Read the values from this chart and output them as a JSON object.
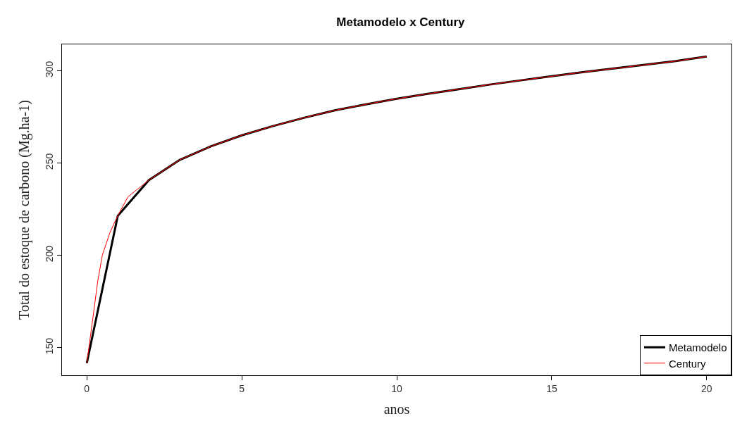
{
  "chart_data": {
    "type": "line",
    "title": "Metamodelo x Century",
    "xlabel": "anos",
    "ylabel": "Total do estoque de carbono (Mg.ha-1)",
    "xlim": [
      -0.8,
      20.8
    ],
    "ylim": [
      135,
      314.3
    ],
    "xticks": [
      0,
      5,
      10,
      15,
      20
    ],
    "yticks": [
      150,
      200,
      250,
      300
    ],
    "legend": "bottom right",
    "line_style": "solid",
    "marker": "none",
    "series": [
      {
        "name": "Metamodelo",
        "color": "#000000",
        "x": [
          0,
          1,
          2,
          3,
          4,
          5,
          6,
          7,
          8,
          9,
          10,
          11,
          12,
          13,
          14,
          15,
          16,
          17,
          18,
          19,
          20
        ],
        "values": [
          141.6,
          221.4,
          240.7,
          251.7,
          259,
          265,
          270,
          274.5,
          278.5,
          281.8,
          284.8,
          287.5,
          290,
          292.5,
          294.8,
          297,
          299.2,
          301.2,
          303.2,
          305.2,
          307.7
        ]
      },
      {
        "name": "Century",
        "color": "#ff0000",
        "x": [
          0,
          0.2,
          0.35,
          0.5,
          0.75,
          1,
          1.33,
          1.67,
          2,
          3,
          4,
          5,
          6,
          7,
          8,
          9,
          10,
          11,
          12,
          13,
          14,
          15,
          16,
          17,
          18,
          19,
          20
        ],
        "values": [
          141.6,
          166.5,
          185.7,
          200,
          212.5,
          221.5,
          231.7,
          236.3,
          240.7,
          251.7,
          259,
          265,
          270,
          274.5,
          278.5,
          281.8,
          284.8,
          287.5,
          290,
          292.5,
          294.8,
          297,
          299.2,
          301.2,
          303.2,
          305.2,
          307.7
        ]
      }
    ]
  }
}
